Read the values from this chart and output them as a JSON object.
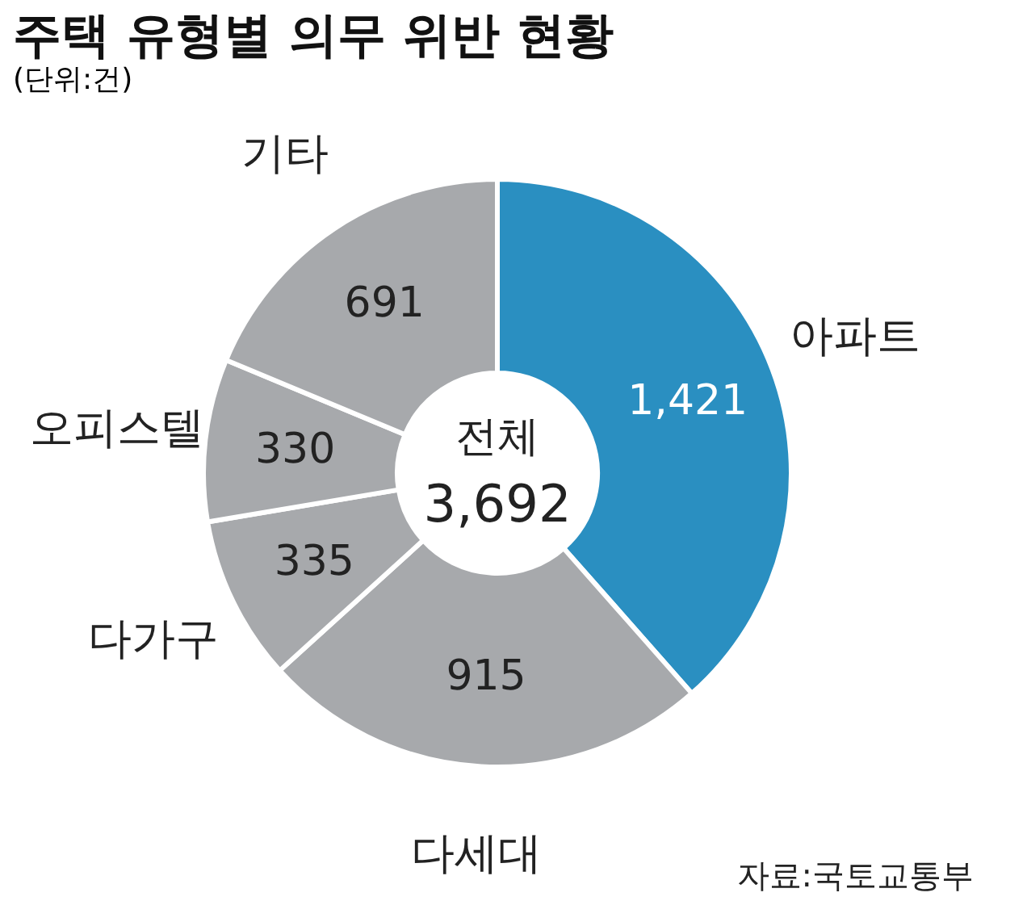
{
  "chart_data": {
    "type": "donut",
    "title": "주택 유형별 의무 위반 현황",
    "subtitle": "(단위:건)",
    "categories": [
      "아파트",
      "다세대",
      "다가구",
      "오피스텔",
      "기타"
    ],
    "values": [
      1421,
      915,
      335,
      330,
      691
    ],
    "colors": [
      "#2a8fc1",
      "#a7a9ac",
      "#a7a9ac",
      "#a7a9ac",
      "#a7a9ac"
    ],
    "value_labels": [
      "1,421",
      "915",
      "335",
      "330",
      "691"
    ],
    "legend": false,
    "annotations": [
      "전체",
      "3,692",
      "자료:국토교통부"
    ]
  }
}
